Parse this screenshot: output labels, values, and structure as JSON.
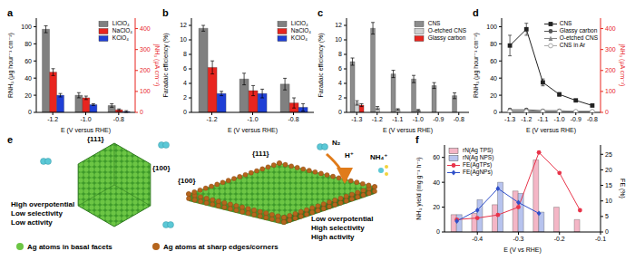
{
  "chart_data": [
    {
      "title": "a",
      "type": "bar",
      "x_label": "E (V versus RHE)",
      "y_label": "RNH₃ (μg hour⁻¹ cm⁻²)",
      "y2_label": "jNH₃ (μA cm⁻²)",
      "categories": [
        "-1.2",
        "-1.0",
        "-0.8"
      ],
      "series": [
        {
          "name": "LiClO₄",
          "color": "#808080",
          "values": [
            97,
            20,
            8
          ],
          "errors": [
            4,
            3,
            2
          ]
        },
        {
          "name": "NaClO₄",
          "color": "#e8251f",
          "values": [
            47,
            17,
            3
          ],
          "errors": [
            4,
            2,
            1
          ]
        },
        {
          "name": "KClO₄",
          "color": "#1f3fd6",
          "values": [
            20,
            9,
            1
          ],
          "errors": [
            2,
            1,
            1
          ]
        }
      ],
      "ylim": [
        0,
        110
      ],
      "yticks": [
        0,
        20,
        40,
        60,
        80,
        100
      ],
      "y2lim": [
        0,
        450
      ],
      "y2ticks": [
        0,
        100,
        200,
        300,
        400
      ],
      "legend": "top-right"
    },
    {
      "title": "b",
      "type": "bar",
      "x_label": "E (V versus RHE)",
      "y_label": "Faradaic efficiency (%)",
      "categories": [
        "-1.2",
        "-1.0",
        "-0.8"
      ],
      "series": [
        {
          "name": "LiClO₄",
          "color": "#808080",
          "values": [
            11.6,
            4.6,
            3.9
          ],
          "errors": [
            0.4,
            0.8,
            0.8
          ]
        },
        {
          "name": "NaClO₄",
          "color": "#e8251f",
          "values": [
            6.2,
            3.0,
            1.3
          ],
          "errors": [
            0.9,
            0.7,
            0.7
          ]
        },
        {
          "name": "KClO₄",
          "color": "#1f3fd6",
          "values": [
            2.6,
            2.6,
            0.7
          ],
          "errors": [
            0.3,
            0.6,
            0.5
          ]
        }
      ],
      "ylim": [
        0,
        13
      ],
      "yticks": [
        0,
        2,
        4,
        6,
        8,
        10,
        12
      ],
      "legend": "top-right"
    },
    {
      "title": "c",
      "type": "bar",
      "x_label": "E (V versus RHE)",
      "y_label": "Faradaic efficiency (%)",
      "categories": [
        "-1.3",
        "-1.2",
        "-1.1",
        "-1.0",
        "-0.9",
        "-0.8"
      ],
      "series": [
        {
          "name": "CNS",
          "color": "#8c8c8c",
          "values": [
            7,
            11.6,
            5.3,
            4.6,
            3.7,
            2.3
          ],
          "errors": [
            0.5,
            0.8,
            0.5,
            0.5,
            0.4,
            0.4
          ]
        },
        {
          "name": "O-etched CNS",
          "color": "#cfcfcf",
          "values": [
            1.3,
            0.6,
            0.4,
            0.3,
            0,
            0
          ],
          "errors": [
            0.3,
            0.2,
            0.1,
            0.1,
            0,
            0
          ]
        },
        {
          "name": "Glassy carbon",
          "color": "#e8251f",
          "values": [
            1.0,
            0,
            0,
            0,
            0,
            0
          ],
          "errors": [
            0.2,
            0,
            0,
            0,
            0,
            0
          ]
        }
      ],
      "ylim": [
        0,
        13
      ],
      "yticks": [
        0,
        2,
        4,
        6,
        8,
        10,
        12
      ],
      "legend": "top-right"
    },
    {
      "title": "d",
      "type": "line",
      "x_label": "E (V versus RHE)",
      "y_label": "RNH₃ (μg hour⁻¹ cm⁻²)",
      "y2_label": "jNH₃ (μA cm⁻²)",
      "x": [
        -1.3,
        -1.2,
        -1.1,
        -1.0,
        -0.9,
        -0.8
      ],
      "series": [
        {
          "name": "CNS",
          "color": "#222222",
          "marker": "square",
          "values": [
            78,
            97,
            35,
            21,
            14,
            8
          ],
          "errors": [
            12,
            7,
            4,
            2,
            1,
            1
          ]
        },
        {
          "name": "Glassy carbon",
          "color": "#555555",
          "marker": "circle",
          "values": [
            3,
            3,
            2,
            2,
            1,
            1
          ]
        },
        {
          "name": "O-etched CNS",
          "color": "#888888",
          "marker": "triangle",
          "values": [
            2,
            2,
            1,
            1,
            1,
            1
          ]
        },
        {
          "name": "CNS in Ar",
          "color": "#aaaaaa",
          "marker": "open_circle",
          "values": [
            1,
            1,
            1,
            1,
            1,
            1
          ]
        }
      ],
      "xlim": [
        -1.35,
        -0.75
      ],
      "xticks": [
        -1.3,
        -1.2,
        -1.1,
        {
          "value": -1,
          "label": "-1.0"
        },
        -0.9,
        -0.8
      ],
      "ylim": [
        0,
        110
      ],
      "yticks": [
        0,
        20,
        40,
        60,
        80,
        100
      ],
      "y2lim": [
        0,
        450
      ],
      "y2ticks": [
        0,
        100,
        200,
        300,
        400
      ],
      "legend": "top-right"
    },
    {
      "title": "f",
      "type": "bar",
      "x_label": "E (V vs RHE)",
      "y_label": "NH₃ yield (mg g⁻¹ h⁻¹)",
      "y2_label": "FE (%)",
      "x": [
        -0.45,
        -0.4,
        -0.35,
        -0.3,
        -0.25,
        -0.2,
        -0.15
      ],
      "series": [
        {
          "name": "rN(Ag TPS)",
          "type": "bar",
          "color": "#f4b6c6",
          "values": [
            14,
            15,
            22,
            33,
            58,
            20,
            10
          ]
        },
        {
          "name": "rN(Ag NPS)",
          "type": "bar",
          "color": "#b7c3ee",
          "values": [
            14,
            26,
            40,
            31,
            16,
            null,
            null
          ]
        },
        {
          "name": "FE(AgTPs)",
          "type": "line",
          "axis": "y2",
          "marker": "circle",
          "color": "#e8344a",
          "values": [
            4,
            4.5,
            5.5,
            8,
            25.6,
            19,
            7
          ]
        },
        {
          "name": "FE(AgNPs)",
          "type": "line",
          "axis": "y2",
          "marker": "diamond",
          "color": "#2f4fc9",
          "values": [
            3.5,
            7,
            14,
            9.5,
            6,
            null,
            null
          ]
        }
      ],
      "xlim": [
        -0.48,
        -0.1
      ],
      "xticks": [
        -0.4,
        -0.3,
        -0.2,
        -0.1
      ],
      "ylim": [
        0,
        70
      ],
      "yticks": [
        0,
        20,
        40,
        60
      ],
      "y2lim": [
        0,
        28
      ],
      "y2ticks": [
        0,
        5,
        10,
        15,
        20,
        25
      ],
      "legend": "top-left"
    }
  ],
  "diagram": {
    "title": "e",
    "particles": [
      {
        "facets": [
          "{111}",
          "{100}"
        ],
        "text": [
          "High overpotential",
          "Low selectivity",
          "Low activity"
        ]
      },
      {
        "facets": [
          "{100}",
          "{111}"
        ],
        "text": [
          "Low overpotential",
          "High selectivity",
          "High activity"
        ]
      }
    ],
    "species": [
      "N₂",
      "H⁺",
      "NH₄⁺"
    ],
    "legend": [
      {
        "label": "Ag atoms in basal facets",
        "color": "#6cc644"
      },
      {
        "label": "Ag atoms at sharp edges/corners",
        "color": "#b5651d"
      }
    ]
  }
}
